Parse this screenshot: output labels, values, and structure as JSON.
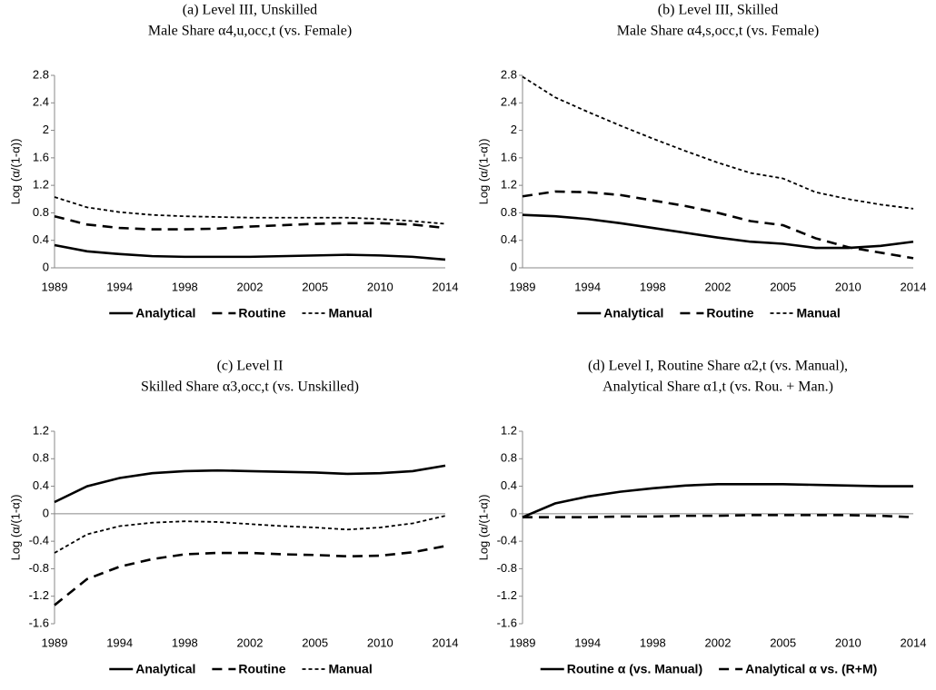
{
  "chart_data": [
    {
      "type": "line",
      "title": "(a) Level III, Unskilled",
      "subtitle": "Male Share α4,u,occ,t (vs. Female)",
      "y_label": "Log (α/(1-α))",
      "categories": [
        "1989",
        null,
        "1994",
        null,
        "1998",
        null,
        "2002",
        null,
        "2005",
        null,
        "2010",
        null,
        "2014"
      ],
      "ylim": [
        0,
        2.8
      ],
      "yticks": [
        0,
        0.4,
        0.8,
        1.2,
        1.6,
        2,
        2.4,
        2.8
      ],
      "series": [
        {
          "name": "Analytical",
          "color": "#000000",
          "linestyle": "solid",
          "values": [
            0.33,
            0.24,
            0.2,
            0.17,
            0.16,
            0.16,
            0.16,
            0.17,
            0.18,
            0.19,
            0.18,
            0.16,
            0.12
          ]
        },
        {
          "name": "Routine",
          "color": "#000000",
          "linestyle": "dashed",
          "values": [
            0.75,
            0.63,
            0.58,
            0.56,
            0.56,
            0.57,
            0.6,
            0.62,
            0.64,
            0.65,
            0.65,
            0.63,
            0.58
          ]
        },
        {
          "name": "Manual",
          "color": "#000000",
          "linestyle": "dotted",
          "values": [
            1.03,
            0.88,
            0.81,
            0.77,
            0.75,
            0.74,
            0.73,
            0.73,
            0.73,
            0.73,
            0.71,
            0.68,
            0.64
          ]
        }
      ]
    },
    {
      "type": "line",
      "title": "(b) Level III, Skilled",
      "subtitle": "Male Share α4,s,occ,t (vs. Female)",
      "y_label": "Log (α/(1-α))",
      "categories": [
        "1989",
        null,
        "1994",
        null,
        "1998",
        null,
        "2002",
        null,
        "2005",
        null,
        "2010",
        null,
        "2014"
      ],
      "ylim": [
        0,
        2.8
      ],
      "yticks": [
        0,
        0.4,
        0.8,
        1.2,
        1.6,
        2,
        2.4,
        2.8
      ],
      "series": [
        {
          "name": "Analytical",
          "color": "#000000",
          "linestyle": "solid",
          "values": [
            0.77,
            0.75,
            0.71,
            0.65,
            0.58,
            0.51,
            0.44,
            0.38,
            0.35,
            0.29,
            0.29,
            0.32,
            0.38
          ]
        },
        {
          "name": "Routine",
          "color": "#000000",
          "linestyle": "dashed",
          "values": [
            1.04,
            1.11,
            1.1,
            1.06,
            0.98,
            0.9,
            0.8,
            0.68,
            0.62,
            0.43,
            0.3,
            0.22,
            0.14
          ]
        },
        {
          "name": "Manual",
          "color": "#000000",
          "linestyle": "dotted",
          "values": [
            2.78,
            2.48,
            2.27,
            2.07,
            1.88,
            1.7,
            1.53,
            1.38,
            1.3,
            1.1,
            1.0,
            0.92,
            0.86
          ]
        }
      ]
    },
    {
      "type": "line",
      "title": "(c) Level II",
      "subtitle": "Skilled Share α3,occ,t (vs. Unskilled)",
      "y_label": "Log (α/(1-α))",
      "categories": [
        "1989",
        null,
        "1994",
        null,
        "1998",
        null,
        "2002",
        null,
        "2005",
        null,
        "2010",
        null,
        "2014"
      ],
      "ylim": [
        -1.6,
        1.2
      ],
      "yticks": [
        -1.6,
        -1.2,
        -0.8,
        -0.4,
        0,
        0.4,
        0.8,
        1.2
      ],
      "series": [
        {
          "name": "Analytical",
          "color": "#000000",
          "linestyle": "solid",
          "values": [
            0.17,
            0.4,
            0.52,
            0.59,
            0.62,
            0.63,
            0.62,
            0.61,
            0.6,
            0.58,
            0.59,
            0.62,
            0.7
          ]
        },
        {
          "name": "Routine",
          "color": "#000000",
          "linestyle": "dashed",
          "values": [
            -1.33,
            -0.95,
            -0.77,
            -0.66,
            -0.59,
            -0.57,
            -0.57,
            -0.59,
            -0.6,
            -0.62,
            -0.61,
            -0.56,
            -0.47
          ]
        },
        {
          "name": "Manual",
          "color": "#000000",
          "linestyle": "dotted",
          "values": [
            -0.57,
            -0.3,
            -0.18,
            -0.13,
            -0.11,
            -0.12,
            -0.15,
            -0.18,
            -0.2,
            -0.23,
            -0.2,
            -0.14,
            -0.03
          ]
        }
      ]
    },
    {
      "type": "line",
      "title": "(d) Level I, Routine Share α2,t (vs. Manual),",
      "subtitle": "Analytical Share α1,t (vs. Rou. + Man.)",
      "y_label": "Log (α/(1-α))",
      "categories": [
        "1989",
        null,
        "1994",
        null,
        "1998",
        null,
        "2002",
        null,
        "2005",
        null,
        "2010",
        null,
        "2014"
      ],
      "ylim": [
        -1.6,
        1.2
      ],
      "yticks": [
        -1.6,
        -1.2,
        -0.8,
        -0.4,
        0,
        0.4,
        0.8,
        1.2
      ],
      "series": [
        {
          "name": "Routine α (vs. Manual)",
          "color": "#000000",
          "linestyle": "solid",
          "values": [
            -0.05,
            0.15,
            0.25,
            0.32,
            0.37,
            0.41,
            0.43,
            0.43,
            0.43,
            0.42,
            0.41,
            0.4,
            0.4
          ]
        },
        {
          "name": "Analytical α vs. (R+M)",
          "color": "#000000",
          "linestyle": "dashed",
          "values": [
            -0.05,
            -0.05,
            -0.05,
            -0.04,
            -0.04,
            -0.03,
            -0.03,
            -0.02,
            -0.02,
            -0.02,
            -0.02,
            -0.03,
            -0.05
          ]
        }
      ]
    }
  ]
}
